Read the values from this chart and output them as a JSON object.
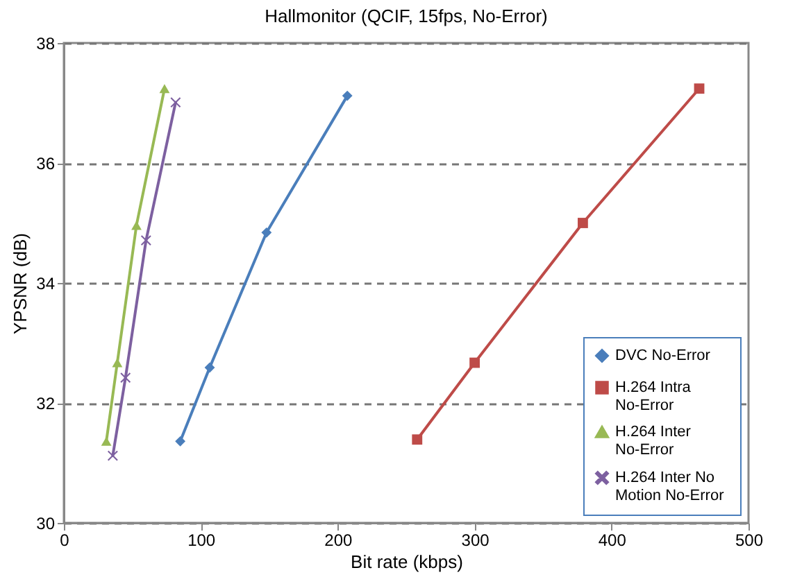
{
  "chart_data": {
    "type": "line",
    "title": "Hallmonitor (QCIF, 15fps,  No-Error)",
    "xlabel": "Bit rate (kbps)",
    "ylabel": "YPSNR (dB)",
    "xlim": [
      0,
      500
    ],
    "xticks": [
      0,
      100,
      200,
      300,
      400,
      500
    ],
    "ylim": [
      30,
      38
    ],
    "yticks": [
      30,
      32,
      34,
      36,
      38
    ],
    "grid": "y",
    "legend": "bottom right",
    "line_style": "solid",
    "series": [
      {
        "name": "DVC No-Error",
        "color": "#4a7ebb",
        "marker": "diamond",
        "x": [
          85,
          106.5,
          148,
          207
        ],
        "values": [
          31.36,
          32.59,
          34.84,
          37.12
        ]
      },
      {
        "name": "H.264 Intra No-Error",
        "color": "#be4b48",
        "marker": "square",
        "x": [
          258,
          300,
          379,
          464
        ],
        "values": [
          31.39,
          32.67,
          35.0,
          37.24
        ]
      },
      {
        "name": "H.264 Inter No-Error",
        "color": "#98b954",
        "marker": "triangle",
        "x": [
          31,
          39,
          53,
          73.5
        ],
        "values": [
          31.36,
          32.67,
          34.96,
          37.24
        ]
      },
      {
        "name": "H.264 Inter No Motion  No-Error",
        "color": "#7d60a0",
        "marker": "cross",
        "x": [
          35.7,
          45,
          60,
          81.6
        ],
        "values": [
          31.12,
          32.42,
          34.71,
          37.01
        ]
      }
    ]
  }
}
